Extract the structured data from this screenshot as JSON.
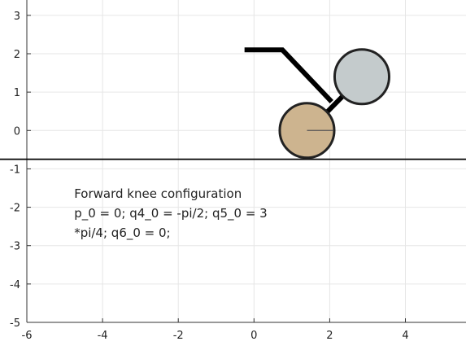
{
  "chart_data": {
    "type": "diagram",
    "xlim": [
      -6,
      5.6
    ],
    "ylim": [
      -5,
      3.4
    ],
    "x_ticks": [
      -6,
      -4,
      -2,
      0,
      2,
      4
    ],
    "y_ticks": [
      -5,
      -4,
      -3,
      -2,
      -1,
      0,
      1,
      2,
      3
    ],
    "x_tick_labels": [
      "-6",
      "-4",
      "-2",
      "0",
      "2",
      "4"
    ],
    "y_tick_labels": [
      "-5",
      "-4",
      "-3",
      "-2",
      "-1",
      "0",
      "1",
      "2",
      "3"
    ],
    "grid": true,
    "ground_y": -0.75,
    "links": [
      {
        "name": "upper-link",
        "points": [
          [
            -0.25,
            2.1
          ],
          [
            0.75,
            2.1
          ],
          [
            2.05,
            0.75
          ]
        ]
      },
      {
        "name": "lower-link",
        "points": [
          [
            1.45,
            0.0
          ],
          [
            2.85,
            1.4
          ]
        ]
      }
    ],
    "wheels": [
      {
        "name": "rear-wheel",
        "center": [
          1.4,
          0.0
        ],
        "radius": 0.72,
        "fill": "#cdb48f",
        "spoke_to": [
          2.1,
          0.0
        ]
      },
      {
        "name": "front-wheel",
        "center": [
          2.85,
          1.4
        ],
        "radius": 0.72,
        "fill": "#c4cbcc"
      }
    ],
    "annotation": {
      "lines": [
        "Forward knee configuration",
        "p_0 = 0; q4_0 = -pi/2; q5_0 = 3",
        "*pi/4; q6_0 = 0;"
      ],
      "x": -4.75,
      "y": -1.75
    },
    "colors": {
      "link": "#000000",
      "ground": "#000000",
      "grid": "#e6e6e6",
      "axis": "#333333",
      "wheel_outline": "#222222"
    }
  }
}
